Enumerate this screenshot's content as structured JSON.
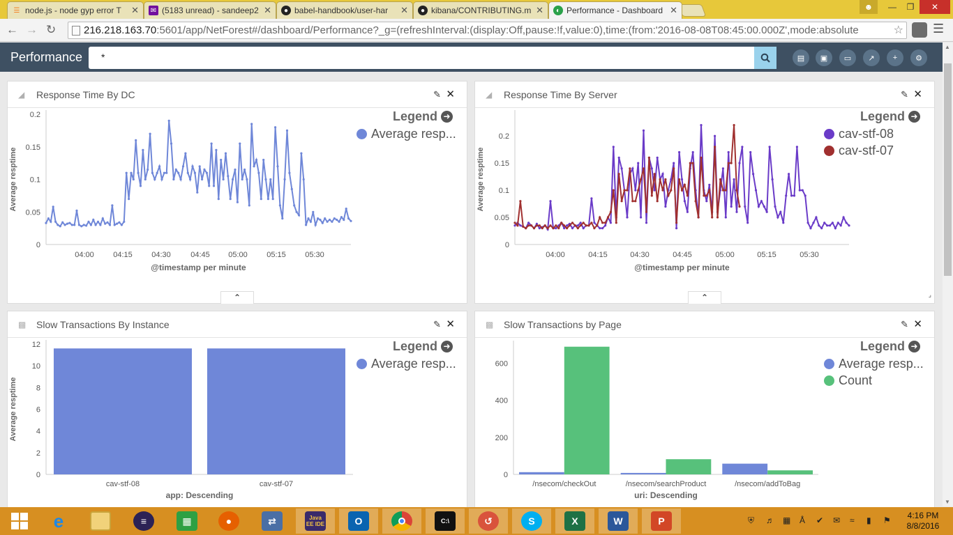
{
  "browser": {
    "tabs": [
      {
        "title": "node.js - node gyp error T",
        "icon": "stack-overflow-icon"
      },
      {
        "title": "(5183 unread) - sandeep2",
        "icon": "yahoo-mail-icon"
      },
      {
        "title": "babel-handbook/user-har",
        "icon": "github-icon"
      },
      {
        "title": "kibana/CONTRIBUTING.m",
        "icon": "github-icon"
      },
      {
        "title": "Performance - Dashboard",
        "icon": "kibana-icon"
      }
    ],
    "url_host": "216.218.163.70",
    "url_rest": ":5601/app/NetForest#/dashboard/Performance?_g=(refreshInterval:(display:Off,pause:!f,value:0),time:(from:'2016-08-08T08:45:00.000Z',mode:absolute"
  },
  "kibana": {
    "title": "Performance",
    "query": "*",
    "toolbar_icons": [
      "new-dashboard-icon",
      "save-icon",
      "open-icon",
      "share-icon",
      "add-panel-icon",
      "settings-icon"
    ]
  },
  "legend_label": "Legend",
  "panels": [
    {
      "title": "Response Time By DC",
      "type_icon": "line-chart-icon"
    },
    {
      "title": "Response Time By Server",
      "type_icon": "line-chart-icon"
    },
    {
      "title": "Slow Transactions By Instance",
      "type_icon": "bar-chart-icon"
    },
    {
      "title": "Slow Transactions by Page",
      "type_icon": "bar-chart-icon"
    }
  ],
  "chart_data": [
    {
      "type": "line",
      "xlabel": "@timestamp per minute",
      "ylabel": "Average resptime",
      "xticks": [
        "04:00",
        "04:15",
        "04:30",
        "04:45",
        "05:00",
        "05:15",
        "05:30"
      ],
      "yticks": [
        "0",
        "0.05",
        "0.1",
        "0.15",
        "0.2"
      ],
      "ylim": [
        0,
        0.2
      ],
      "series": [
        {
          "name": "Average resp...",
          "color": "#6f87d8",
          "values": [
            0.033,
            0.04,
            0.035,
            0.058,
            0.035,
            0.03,
            0.028,
            0.034,
            0.03,
            0.032,
            0.033,
            0.03,
            0.03,
            0.052,
            0.03,
            0.028,
            0.03,
            0.029,
            0.035,
            0.03,
            0.038,
            0.03,
            0.035,
            0.03,
            0.04,
            0.032,
            0.034,
            0.03,
            0.06,
            0.03,
            0.032,
            0.034,
            0.03,
            0.035,
            0.11,
            0.07,
            0.11,
            0.1,
            0.16,
            0.11,
            0.09,
            0.145,
            0.1,
            0.115,
            0.17,
            0.11,
            0.1,
            0.11,
            0.12,
            0.1,
            0.11,
            0.11,
            0.19,
            0.155,
            0.1,
            0.115,
            0.11,
            0.1,
            0.12,
            0.14,
            0.11,
            0.1,
            0.12,
            0.11,
            0.08,
            0.12,
            0.1,
            0.115,
            0.11,
            0.09,
            0.155,
            0.09,
            0.145,
            0.07,
            0.13,
            0.1,
            0.14,
            0.105,
            0.07,
            0.1,
            0.115,
            0.065,
            0.155,
            0.1,
            0.115,
            0.1,
            0.06,
            0.185,
            0.12,
            0.13,
            0.11,
            0.07,
            0.13,
            0.1,
            0.07,
            0.1,
            0.07,
            0.18,
            0.12,
            0.06,
            0.04,
            0.1,
            0.175,
            0.11,
            0.085,
            0.06,
            0.05,
            0.045,
            0.14,
            0.1,
            0.03,
            0.04,
            0.035,
            0.05,
            0.03,
            0.04,
            0.038,
            0.033,
            0.04,
            0.035,
            0.038,
            0.035,
            0.04,
            0.038,
            0.035,
            0.042,
            0.038,
            0.055,
            0.04,
            0.036
          ]
        }
      ]
    },
    {
      "type": "line",
      "xlabel": "@timestamp per minute",
      "ylabel": "Average resptime",
      "xticks": [
        "04:00",
        "04:15",
        "04:30",
        "04:45",
        "05:00",
        "05:15",
        "05:30"
      ],
      "yticks": [
        "0",
        "0.05",
        "0.1",
        "0.15",
        "0.2"
      ],
      "ylim": [
        0,
        0.24
      ],
      "series": [
        {
          "name": "cav-stf-08",
          "color": "#6a3bc8",
          "values": [
            0.035,
            0.04,
            0.035,
            0.033,
            0.03,
            0.04,
            0.035,
            0.03,
            0.038,
            0.03,
            0.032,
            0.035,
            0.028,
            0.08,
            0.03,
            0.03,
            0.035,
            0.04,
            0.03,
            0.035,
            0.038,
            0.03,
            0.035,
            0.035,
            0.04,
            0.03,
            0.035,
            0.035,
            0.085,
            0.04,
            0.035,
            0.03,
            0.03,
            0.035,
            0.05,
            0.04,
            0.18,
            0.05,
            0.16,
            0.14,
            0.1,
            0.05,
            0.13,
            0.14,
            0.1,
            0.15,
            0.05,
            0.21,
            0.04,
            0.16,
            0.14,
            0.1,
            0.16,
            0.12,
            0.13,
            0.07,
            0.1,
            0.12,
            0.15,
            0.03,
            0.17,
            0.12,
            0.08,
            0.06,
            0.14,
            0.17,
            0.1,
            0.05,
            0.22,
            0.1,
            0.08,
            0.11,
            0.06,
            0.2,
            0.06,
            0.1,
            0.14,
            0.05,
            0.17,
            0.07,
            0.12,
            0.06,
            0.15,
            0.18,
            0.07,
            0.04,
            0.17,
            0.13,
            0.1,
            0.07,
            0.08,
            0.07,
            0.06,
            0.18,
            0.12,
            0.07,
            0.05,
            0.06,
            0.04,
            0.09,
            0.13,
            0.09,
            0.09,
            0.18,
            0.1,
            0.1,
            0.09,
            0.04,
            0.03,
            0.04,
            0.05,
            0.035,
            0.03,
            0.04,
            0.035,
            0.035,
            0.04,
            0.03,
            0.04,
            0.035,
            0.05,
            0.04,
            0.035
          ]
        },
        {
          "name": "cav-stf-07",
          "color": "#a0302f",
          "values": [
            0.04,
            0.035,
            0.08,
            0.033,
            0.03,
            0.035,
            0.035,
            0.03,
            0.035,
            0.035,
            0.03,
            0.035,
            0.03,
            0.035,
            0.03,
            0.035,
            0.03,
            0.04,
            0.035,
            0.03,
            0.035,
            0.04,
            0.035,
            0.03,
            0.035,
            0.04,
            0.035,
            0.035,
            0.04,
            0.03,
            0.035,
            0.05,
            0.04,
            0.04,
            0.05,
            0.06,
            0.1,
            0.04,
            0.13,
            0.08,
            0.1,
            0.1,
            0.14,
            0.08,
            0.08,
            0.1,
            0.12,
            0.14,
            0.06,
            0.16,
            0.09,
            0.13,
            0.08,
            0.12,
            0.1,
            0.12,
            0.09,
            0.1,
            0.14,
            0.04,
            0.12,
            0.1,
            0.11,
            0.09,
            0.15,
            0.15,
            0.08,
            0.05,
            0.16,
            0.09,
            0.09,
            0.1,
            0.05,
            0.18,
            0.05,
            0.12,
            0.1,
            0.1,
            0.15,
            0.15,
            0.22,
            0.1,
            0.07
          ]
        }
      ]
    },
    {
      "type": "bar",
      "xlabel": "app: Descending",
      "ylabel": "Average resptime",
      "categories": [
        "cav-stf-08",
        "cav-stf-07"
      ],
      "yticks": [
        "0",
        "2",
        "4",
        "6",
        "8",
        "10",
        "12"
      ],
      "ylim": [
        0,
        12
      ],
      "series": [
        {
          "name": "Average resp...",
          "color": "#6f87d8",
          "values": [
            11.6,
            11.6
          ]
        }
      ]
    },
    {
      "type": "bar",
      "xlabel": "uri: Descending",
      "ylabel": "",
      "categories": [
        "/nsecom/checkOut",
        "/nsecom/searchProduct",
        "/nsecom/addToBag"
      ],
      "yticks": [
        "0",
        "200",
        "400",
        "600"
      ],
      "ylim": [
        0,
        700
      ],
      "series": [
        {
          "name": "Average resp...",
          "color": "#6f87d8",
          "values": [
            12,
            8,
            58
          ]
        },
        {
          "name": "Count",
          "color": "#57c17b",
          "values": [
            690,
            82,
            22
          ]
        }
      ]
    }
  ],
  "taskbar": {
    "apps": [
      "windows-start-icon",
      "ie-icon",
      "file-explorer-icon",
      "eclipse-icon",
      "store-icon",
      "firefox-icon",
      "network-icon",
      "java-ee-ide-icon",
      "outlook-icon",
      "chrome-icon",
      "cmd-icon",
      "app-icon",
      "skype-icon",
      "excel-icon",
      "word-icon",
      "powerpoint-icon"
    ],
    "java_label": "Java EE IDE",
    "time": "4:16 PM",
    "date": "8/8/2016"
  }
}
